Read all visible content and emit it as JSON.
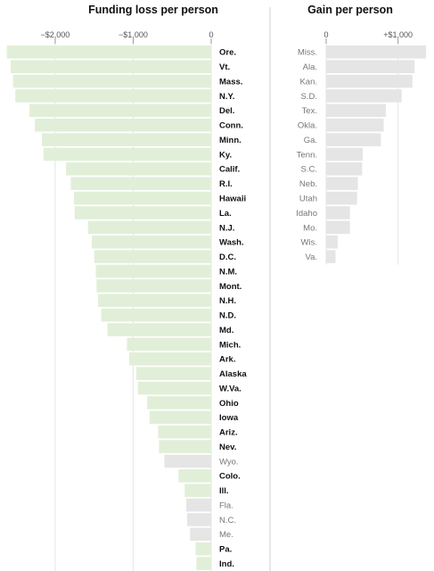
{
  "chart_data": [
    {
      "type": "bar",
      "title": "Funding loss per person",
      "xlim": [
        -2650,
        0
      ],
      "xticks": [
        {
          "value": -2000,
          "label": "−$2,000"
        },
        {
          "value": -1000,
          "label": "−$1,000"
        },
        {
          "value": 0,
          "label": "0"
        }
      ],
      "grid": true,
      "colors": {
        "highlighted": "#e1efd8",
        "other": "#e5e5e5",
        "grid": "#e6e6e6"
      },
      "bars": [
        {
          "label": "Ore.",
          "value": -2620,
          "bold": true
        },
        {
          "label": "Vt.",
          "value": -2570,
          "bold": true
        },
        {
          "label": "Mass.",
          "value": -2540,
          "bold": true
        },
        {
          "label": "N.Y.",
          "value": -2510,
          "bold": true
        },
        {
          "label": "Del.",
          "value": -2330,
          "bold": true
        },
        {
          "label": "Conn.",
          "value": -2260,
          "bold": true
        },
        {
          "label": "Minn.",
          "value": -2170,
          "bold": true
        },
        {
          "label": "Ky.",
          "value": -2150,
          "bold": true
        },
        {
          "label": "Calif.",
          "value": -1860,
          "bold": true
        },
        {
          "label": "R.I.",
          "value": -1800,
          "bold": true
        },
        {
          "label": "Hawaii",
          "value": -1760,
          "bold": true
        },
        {
          "label": "La.",
          "value": -1750,
          "bold": true
        },
        {
          "label": "N.J.",
          "value": -1580,
          "bold": true
        },
        {
          "label": "Wash.",
          "value": -1530,
          "bold": true
        },
        {
          "label": "D.C.",
          "value": -1500,
          "bold": true
        },
        {
          "label": "N.M.",
          "value": -1480,
          "bold": true
        },
        {
          "label": "Mont.",
          "value": -1470,
          "bold": true
        },
        {
          "label": "N.H.",
          "value": -1450,
          "bold": true
        },
        {
          "label": "N.D.",
          "value": -1410,
          "bold": true
        },
        {
          "label": "Md.",
          "value": -1330,
          "bold": true
        },
        {
          "label": "Mich.",
          "value": -1080,
          "bold": true
        },
        {
          "label": "Ark.",
          "value": -1050,
          "bold": true
        },
        {
          "label": "Alaska",
          "value": -960,
          "bold": true
        },
        {
          "label": "W.Va.",
          "value": -940,
          "bold": true
        },
        {
          "label": "Ohio",
          "value": -820,
          "bold": true
        },
        {
          "label": "Iowa",
          "value": -790,
          "bold": true
        },
        {
          "label": "Ariz.",
          "value": -680,
          "bold": true
        },
        {
          "label": "Nev.",
          "value": -670,
          "bold": true
        },
        {
          "label": "Wyo.",
          "value": -600,
          "bold": false
        },
        {
          "label": "Colo.",
          "value": -420,
          "bold": true
        },
        {
          "label": "Ill.",
          "value": -340,
          "bold": true
        },
        {
          "label": "Fla.",
          "value": -320,
          "bold": false
        },
        {
          "label": "N.C.",
          "value": -310,
          "bold": false
        },
        {
          "label": "Me.",
          "value": -270,
          "bold": false
        },
        {
          "label": "Pa.",
          "value": -200,
          "bold": true
        },
        {
          "label": "Ind.",
          "value": -190,
          "bold": true
        }
      ]
    },
    {
      "type": "bar",
      "title": "Gain per person",
      "xlim": [
        0,
        1450
      ],
      "xticks": [
        {
          "value": 0,
          "label": "0"
        },
        {
          "value": 1000,
          "label": "+$1,000"
        }
      ],
      "grid": true,
      "colors": {
        "bar": "#e5e5e5",
        "grid": "#e6e6e6"
      },
      "bars": [
        {
          "label": "Miss.",
          "value": 1390
        },
        {
          "label": "Ala.",
          "value": 1230
        },
        {
          "label": "Kan.",
          "value": 1200
        },
        {
          "label": "S.D.",
          "value": 1050
        },
        {
          "label": "Tex.",
          "value": 830
        },
        {
          "label": "Okla.",
          "value": 800
        },
        {
          "label": "Ga.",
          "value": 760
        },
        {
          "label": "Tenn.",
          "value": 510
        },
        {
          "label": "S.C.",
          "value": 500
        },
        {
          "label": "Neb.",
          "value": 440
        },
        {
          "label": "Utah",
          "value": 430
        },
        {
          "label": "Idaho",
          "value": 330
        },
        {
          "label": "Mo.",
          "value": 330
        },
        {
          "label": "Wis.",
          "value": 160
        },
        {
          "label": "Va.",
          "value": 130
        }
      ]
    }
  ]
}
